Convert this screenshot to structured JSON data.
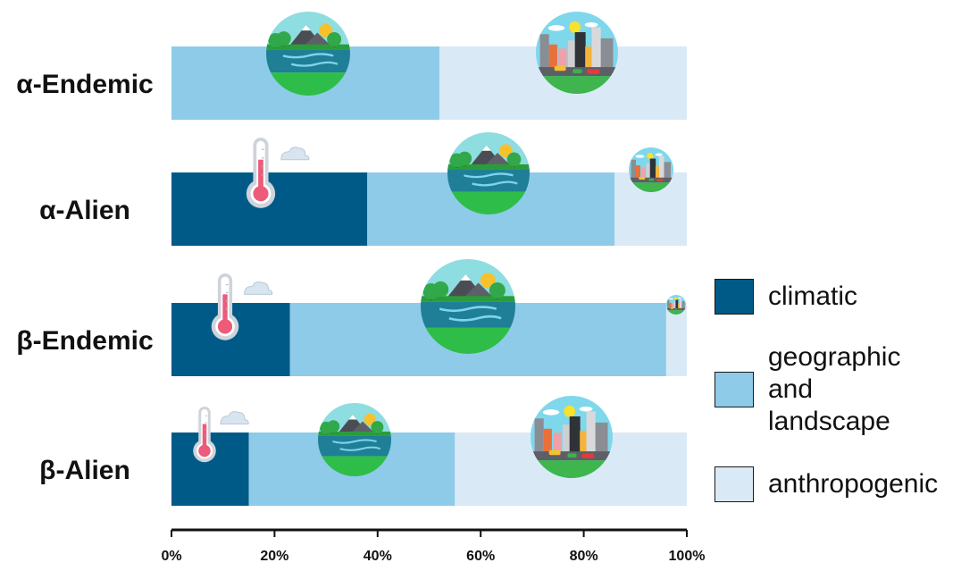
{
  "chart_data": {
    "type": "bar",
    "orientation": "horizontal",
    "stacked": true,
    "percent": true,
    "categories": [
      "α-Endemic",
      "α-Alien",
      "β-Endemic",
      "β-Alien"
    ],
    "series": [
      {
        "name": "climatic",
        "color": "#005a87",
        "values": [
          0,
          38,
          23,
          15
        ]
      },
      {
        "name": "geographic\nand\nlandscape",
        "color": "#8ecbe9",
        "values": [
          52,
          48,
          73,
          40
        ]
      },
      {
        "name": "anthropogenic",
        "color": "#d9eaf6",
        "values": [
          48,
          14,
          4,
          45
        ]
      }
    ],
    "xticks": [
      "0%",
      "20%",
      "40%",
      "60%",
      "80%",
      "100%"
    ],
    "xlim": [
      0,
      100
    ],
    "legend_position": "right",
    "grid": false,
    "icons": [
      "thermometer-icon",
      "landscape-icon",
      "city-icon"
    ]
  }
}
